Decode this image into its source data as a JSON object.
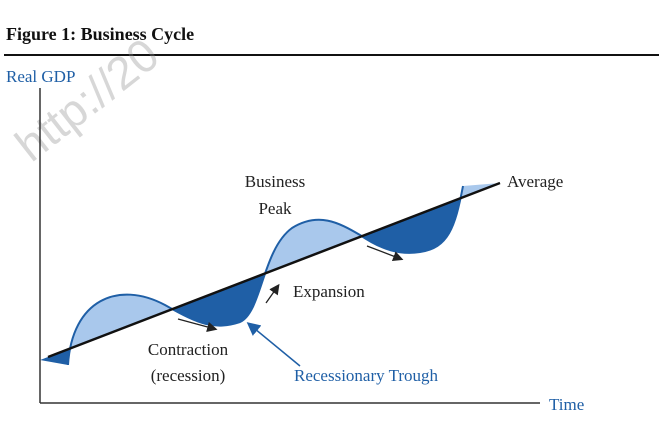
{
  "figure": {
    "title": "Figure 1: Business Cycle",
    "watermark": "http://20"
  },
  "axes": {
    "y_label": "Real GDP",
    "x_label": "Time"
  },
  "labels": {
    "average": "Average",
    "business_peak_line1": "Business",
    "business_peak_line2": "Peak",
    "expansion": "Expansion",
    "contraction_line1": "Contraction",
    "contraction_line2": "(recession)",
    "recessionary_trough": "Recessionary Trough"
  },
  "colors": {
    "axis": "#333333",
    "trend_line": "#111111",
    "cycle_curve": "#1f5fa6",
    "above_fill": "#a9c8ec",
    "below_fill": "#1f5fa6",
    "trough_label": "#1f5fa6"
  }
}
